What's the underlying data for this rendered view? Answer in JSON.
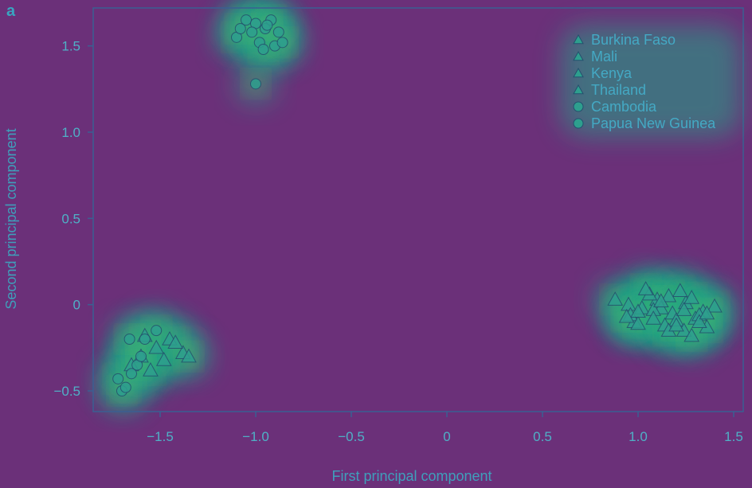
{
  "panel_label": "a",
  "colors": {
    "background": "#6b3079",
    "frame": "#3b5f92",
    "tick_text": "#4fb0c6",
    "glow_outer": "#20a486",
    "glow_inner": "#b5de2b",
    "marker_fill": "#2e9f8e",
    "marker_stroke": "#24506e"
  },
  "chart_data": {
    "type": "scatter",
    "title": "",
    "xlabel": "First principal component",
    "ylabel": "Second principal component",
    "xlim": [
      -1.85,
      1.55
    ],
    "ylim": [
      -0.62,
      1.72
    ],
    "xticks": [
      -1.5,
      -1.0,
      -0.5,
      0,
      0.5,
      1.0,
      1.5
    ],
    "xtick_labels": [
      "−1.5",
      "−1.0",
      "−0.5",
      "0",
      "0.5",
      "1.0",
      "1.5"
    ],
    "yticks": [
      -0.5,
      0,
      0.5,
      1.0,
      1.5
    ],
    "ytick_labels": [
      "−0.5",
      "0",
      "0.5",
      "1.0",
      "1.5"
    ],
    "legend_position": "top-right",
    "series": [
      {
        "name": "Burkina Faso",
        "marker": "triangle",
        "x": [
          0.95,
          1.02,
          1.1,
          1.18,
          1.25,
          1.3,
          0.98,
          1.06,
          1.14,
          1.22,
          1.34,
          1.4
        ],
        "y": [
          0.0,
          -0.02,
          0.03,
          -0.05,
          0.01,
          -0.08,
          -0.1,
          0.06,
          -0.12,
          0.08,
          -0.04,
          -0.01
        ]
      },
      {
        "name": "Mali",
        "marker": "triangle",
        "x": [
          0.88,
          0.96,
          1.04,
          1.12,
          1.2,
          1.28,
          1.36,
          1.0,
          1.08,
          1.16,
          1.24,
          1.32
        ],
        "y": [
          0.03,
          -0.06,
          0.09,
          -0.02,
          -0.09,
          0.04,
          -0.13,
          -0.11,
          -0.03,
          0.05,
          -0.15,
          -0.06
        ]
      },
      {
        "name": "Kenya",
        "marker": "triangle",
        "x": [
          -1.6,
          -1.52,
          -1.45,
          -1.38,
          -1.65,
          -1.55,
          -1.48,
          -1.42,
          -1.35,
          -1.58
        ],
        "y": [
          -0.3,
          -0.25,
          -0.2,
          -0.28,
          -0.35,
          -0.38,
          -0.32,
          -0.22,
          -0.3,
          -0.18
        ]
      },
      {
        "name": "Thailand",
        "marker": "triangle",
        "x": [
          1.0,
          1.08,
          1.16,
          1.24,
          1.32,
          0.94,
          1.12,
          1.2,
          1.28,
          1.36
        ],
        "y": [
          -0.04,
          -0.08,
          -0.15,
          -0.03,
          -0.1,
          -0.07,
          0.02,
          -0.12,
          -0.18,
          -0.05
        ]
      },
      {
        "name": "Cambodia",
        "marker": "circle",
        "x": [
          -1.05,
          -1.0,
          -0.95,
          -0.92,
          -0.88,
          -1.1,
          -0.98,
          -0.9,
          -1.02,
          -0.96,
          -0.86,
          -1.08,
          -0.94
        ],
        "y": [
          1.65,
          1.63,
          1.6,
          1.65,
          1.58,
          1.55,
          1.52,
          1.5,
          1.58,
          1.48,
          1.52,
          1.6,
          1.62
        ]
      },
      {
        "name": "Papua New Guinea",
        "marker": "circle",
        "x": [
          -1.72,
          -1.7,
          -1.68,
          -1.65,
          -1.62,
          -1.58,
          -1.52,
          -1.66,
          -1.6,
          -1.0
        ],
        "y": [
          -0.43,
          -0.5,
          -0.48,
          -0.4,
          -0.35,
          -0.2,
          -0.15,
          -0.2,
          -0.3,
          1.28
        ]
      }
    ]
  }
}
